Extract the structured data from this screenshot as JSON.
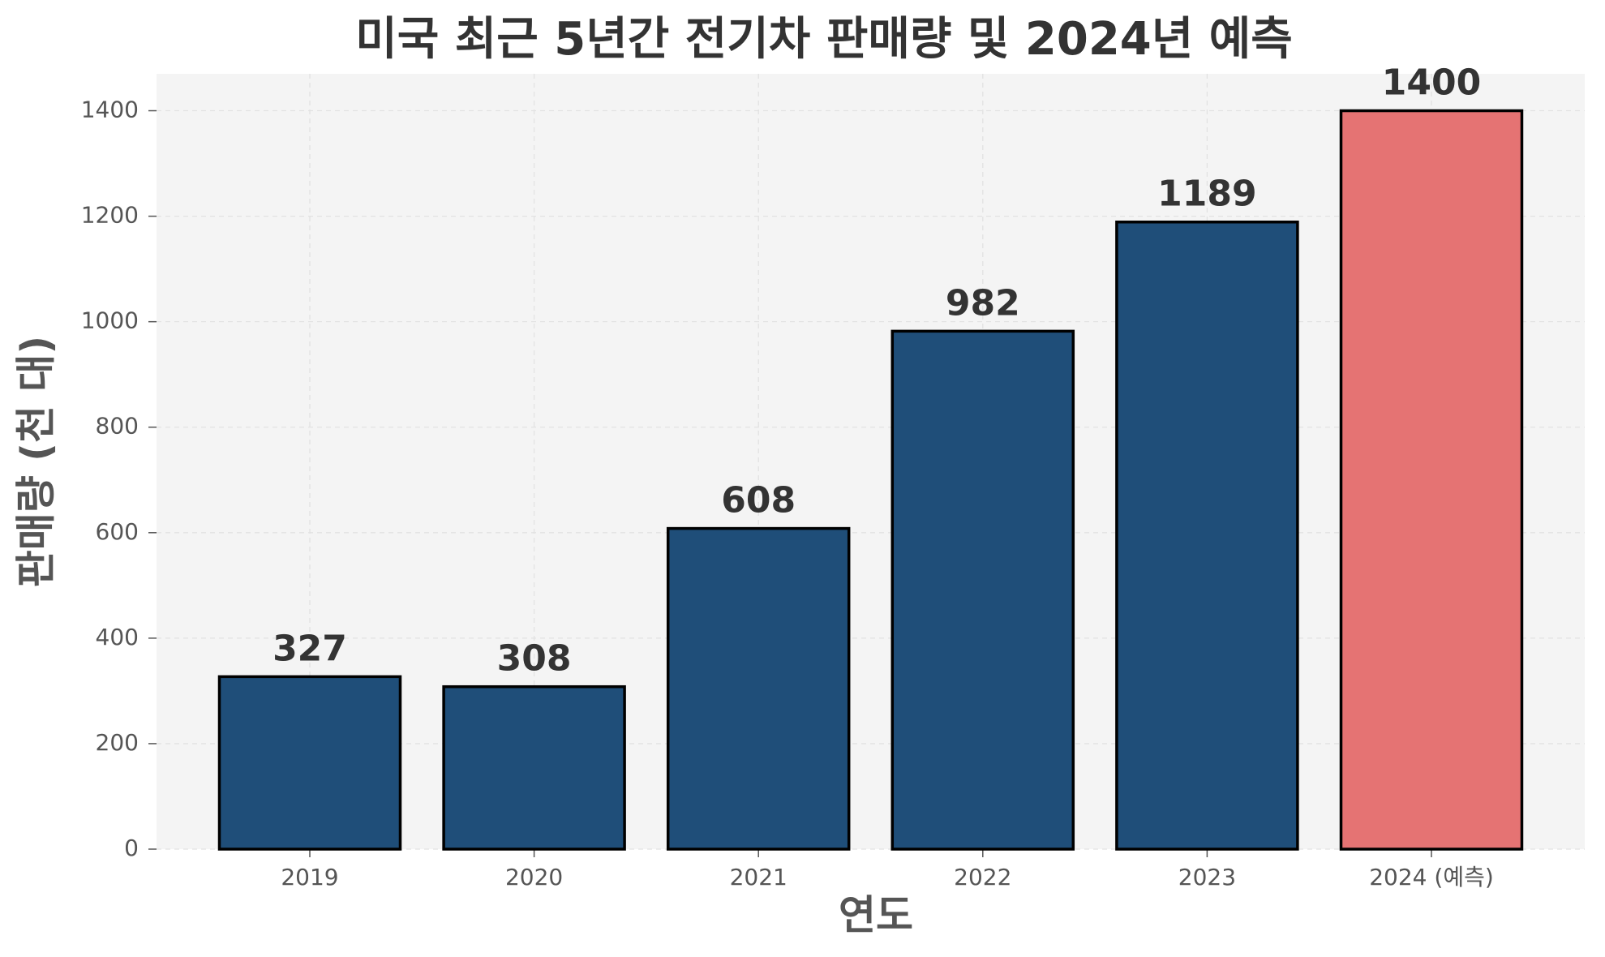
{
  "chart_data": {
    "type": "bar",
    "title": "미국 최근 5년간 전기차 판매량 및 2024년 예측",
    "x_label": "연도",
    "y_label": "판매량 (천 대)",
    "categories": [
      "2019",
      "2020",
      "2021",
      "2022",
      "2023",
      "2024 (예측)"
    ],
    "values": [
      327,
      308,
      608,
      982,
      1189,
      1400
    ],
    "colors": [
      "#1f4e79",
      "#1f4e79",
      "#1f4e79",
      "#1f4e79",
      "#1f4e79",
      "#e57373"
    ],
    "ylim": [
      0,
      1470
    ],
    "yticks": [
      0,
      200,
      400,
      600,
      800,
      1000,
      1200,
      1400
    ],
    "grid": true
  }
}
